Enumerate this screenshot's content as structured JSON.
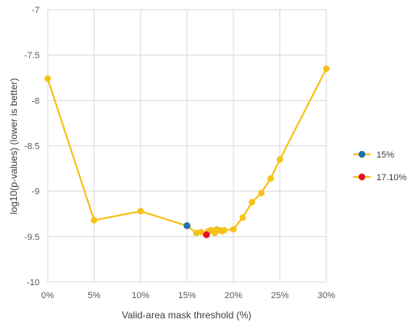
{
  "chart_data": {
    "type": "line",
    "title": "",
    "xlabel": "Valid-area mask threshold (%)",
    "ylabel": "log10(p-values) (lower is better)",
    "xlim": [
      0,
      30
    ],
    "ylim": [
      -10,
      -7
    ],
    "x_ticks": [
      {
        "value": 0,
        "label": "0%"
      },
      {
        "value": 5,
        "label": "5%"
      },
      {
        "value": 10,
        "label": "10%"
      },
      {
        "value": 15,
        "label": "15%"
      },
      {
        "value": 20,
        "label": "20%"
      },
      {
        "value": 25,
        "label": "25%"
      },
      {
        "value": 30,
        "label": "30%"
      }
    ],
    "y_ticks": [
      {
        "value": -7,
        "label": "-7"
      },
      {
        "value": -7.5,
        "label": "-7.5"
      },
      {
        "value": -8,
        "label": "-8"
      },
      {
        "value": -8.5,
        "label": "-8.5"
      },
      {
        "value": -9,
        "label": "-9"
      },
      {
        "value": -9.5,
        "label": "-9.5"
      },
      {
        "value": -10,
        "label": "-10"
      }
    ],
    "grid": "vertical and horizontal",
    "legend_position": "right",
    "series": [
      {
        "line_color": "#F5C21A",
        "marker_color": "#F5C21A",
        "points": [
          {
            "x": 0,
            "y": -7.76
          },
          {
            "x": 5,
            "y": -9.32
          },
          {
            "x": 10,
            "y": -9.22
          },
          {
            "x": 15,
            "y": -9.38
          },
          {
            "x": 16,
            "y": -9.46
          },
          {
            "x": 16.5,
            "y": -9.45
          },
          {
            "x": 17,
            "y": -9.47
          },
          {
            "x": 17.3,
            "y": -9.44
          },
          {
            "x": 17.6,
            "y": -9.43
          },
          {
            "x": 18,
            "y": -9.46
          },
          {
            "x": 18.2,
            "y": -9.42
          },
          {
            "x": 18.5,
            "y": -9.43
          },
          {
            "x": 18.8,
            "y": -9.44
          },
          {
            "x": 19,
            "y": -9.43
          },
          {
            "x": 20,
            "y": -9.42
          },
          {
            "x": 21,
            "y": -9.29
          },
          {
            "x": 22,
            "y": -9.12
          },
          {
            "x": 23,
            "y": -9.02
          },
          {
            "x": 24,
            "y": -8.86
          },
          {
            "x": 25,
            "y": -8.65
          },
          {
            "x": 30,
            "y": -7.65
          }
        ]
      }
    ],
    "highlights": [
      {
        "name": "15%",
        "x": 15,
        "y": -9.38,
        "color": "#1F6FB2"
      },
      {
        "name": "17.10%",
        "x": 17.1,
        "y": -9.48,
        "color": "#E8121A"
      }
    ],
    "legend": [
      {
        "label": "15%",
        "line_color": "#F5C21A",
        "marker_color": "#1F6FB2"
      },
      {
        "label": "17.10%",
        "line_color": "#F5C21A",
        "marker_color": "#E8121A"
      }
    ]
  }
}
